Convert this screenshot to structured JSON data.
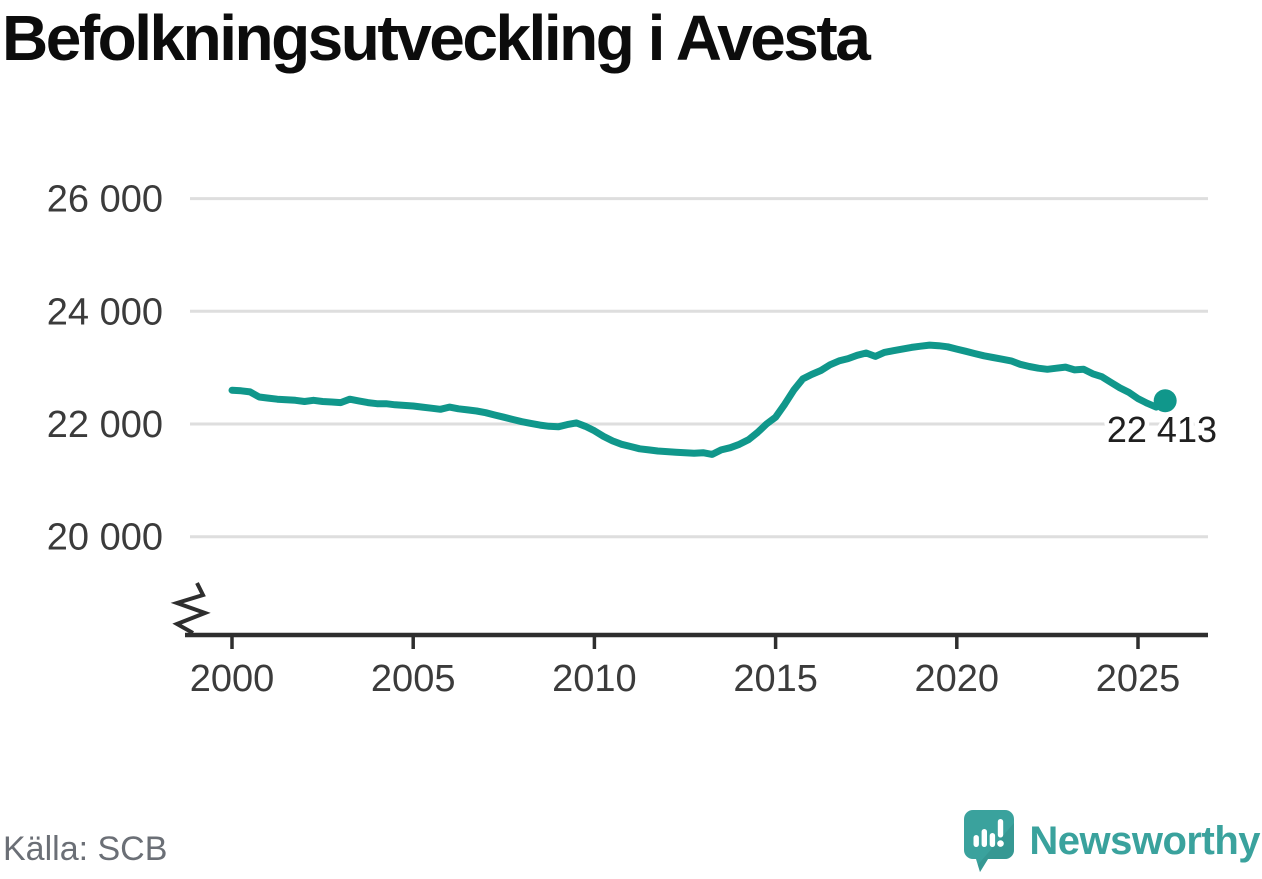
{
  "header": {
    "title": "Befolkningsutveckling i Avesta"
  },
  "chart_data": {
    "type": "line",
    "title": "Befolkningsutveckling i Avesta",
    "xlabel": "",
    "ylabel": "",
    "xlim": [
      2000,
      2025.75
    ],
    "ylim": [
      19600,
      26400
    ],
    "grid": true,
    "legend": "none",
    "y_axis_break": true,
    "y_ticks": [
      {
        "label": "26 000",
        "value": 26000
      },
      {
        "label": "24 000",
        "value": 24000
      },
      {
        "label": "22 000",
        "value": 22000
      },
      {
        "label": "20 000",
        "value": 20000
      }
    ],
    "x_ticks": [
      {
        "label": "2000",
        "year": 2000
      },
      {
        "label": "2005",
        "year": 2005
      },
      {
        "label": "2010",
        "year": 2010
      },
      {
        "label": "2015",
        "year": 2015
      },
      {
        "label": "2020",
        "year": 2020
      },
      {
        "label": "2025",
        "year": 2025
      }
    ],
    "latest": {
      "label": "22 413",
      "year": 2025.75,
      "value": 22413
    },
    "points": [
      [
        2000.0,
        22600
      ],
      [
        2000.25,
        22590
      ],
      [
        2000.5,
        22570
      ],
      [
        2000.75,
        22480
      ],
      [
        2001.0,
        22460
      ],
      [
        2001.25,
        22440
      ],
      [
        2001.5,
        22430
      ],
      [
        2001.75,
        22420
      ],
      [
        2002.0,
        22400
      ],
      [
        2002.25,
        22420
      ],
      [
        2002.5,
        22400
      ],
      [
        2002.75,
        22390
      ],
      [
        2003.0,
        22380
      ],
      [
        2003.25,
        22440
      ],
      [
        2003.5,
        22410
      ],
      [
        2003.75,
        22380
      ],
      [
        2004.0,
        22360
      ],
      [
        2004.25,
        22360
      ],
      [
        2004.5,
        22340
      ],
      [
        2004.75,
        22330
      ],
      [
        2005.0,
        22320
      ],
      [
        2005.25,
        22300
      ],
      [
        2005.5,
        22280
      ],
      [
        2005.75,
        22260
      ],
      [
        2006.0,
        22300
      ],
      [
        2006.25,
        22270
      ],
      [
        2006.5,
        22250
      ],
      [
        2006.75,
        22230
      ],
      [
        2007.0,
        22200
      ],
      [
        2007.25,
        22160
      ],
      [
        2007.5,
        22120
      ],
      [
        2007.75,
        22080
      ],
      [
        2008.0,
        22040
      ],
      [
        2008.25,
        22010
      ],
      [
        2008.5,
        21980
      ],
      [
        2008.75,
        21960
      ],
      [
        2009.0,
        21950
      ],
      [
        2009.25,
        21990
      ],
      [
        2009.5,
        22020
      ],
      [
        2009.75,
        21960
      ],
      [
        2010.0,
        21880
      ],
      [
        2010.25,
        21780
      ],
      [
        2010.5,
        21700
      ],
      [
        2010.75,
        21640
      ],
      [
        2011.0,
        21600
      ],
      [
        2011.25,
        21560
      ],
      [
        2011.5,
        21540
      ],
      [
        2011.75,
        21520
      ],
      [
        2012.0,
        21510
      ],
      [
        2012.25,
        21500
      ],
      [
        2012.5,
        21490
      ],
      [
        2012.75,
        21480
      ],
      [
        2013.0,
        21490
      ],
      [
        2013.25,
        21460
      ],
      [
        2013.5,
        21540
      ],
      [
        2013.75,
        21580
      ],
      [
        2014.0,
        21640
      ],
      [
        2014.25,
        21720
      ],
      [
        2014.5,
        21850
      ],
      [
        2014.75,
        22000
      ],
      [
        2015.0,
        22120
      ],
      [
        2015.25,
        22350
      ],
      [
        2015.5,
        22600
      ],
      [
        2015.75,
        22800
      ],
      [
        2016.0,
        22880
      ],
      [
        2016.25,
        22950
      ],
      [
        2016.5,
        23050
      ],
      [
        2016.75,
        23120
      ],
      [
        2017.0,
        23160
      ],
      [
        2017.25,
        23220
      ],
      [
        2017.5,
        23260
      ],
      [
        2017.75,
        23200
      ],
      [
        2018.0,
        23270
      ],
      [
        2018.25,
        23300
      ],
      [
        2018.5,
        23330
      ],
      [
        2018.75,
        23360
      ],
      [
        2019.0,
        23380
      ],
      [
        2019.25,
        23400
      ],
      [
        2019.5,
        23390
      ],
      [
        2019.75,
        23370
      ],
      [
        2020.0,
        23330
      ],
      [
        2020.25,
        23290
      ],
      [
        2020.5,
        23250
      ],
      [
        2020.75,
        23210
      ],
      [
        2021.0,
        23180
      ],
      [
        2021.25,
        23150
      ],
      [
        2021.5,
        23120
      ],
      [
        2021.75,
        23060
      ],
      [
        2022.0,
        23020
      ],
      [
        2022.25,
        22990
      ],
      [
        2022.5,
        22970
      ],
      [
        2022.75,
        22990
      ],
      [
        2023.0,
        23010
      ],
      [
        2023.25,
        22960
      ],
      [
        2023.5,
        22970
      ],
      [
        2023.75,
        22890
      ],
      [
        2024.0,
        22840
      ],
      [
        2024.25,
        22740
      ],
      [
        2024.5,
        22640
      ],
      [
        2024.75,
        22560
      ],
      [
        2025.0,
        22450
      ],
      [
        2025.25,
        22370
      ],
      [
        2025.5,
        22300
      ],
      [
        2025.75,
        22413
      ]
    ],
    "colors": {
      "line": "#10978b",
      "grid": "#dedede",
      "axis": "#2e2e2e",
      "tick_label": "#3b3b3b",
      "title": "#0c0c0c",
      "source": "#6b6f76",
      "brand": "#3aa29d",
      "annotation": "#202020"
    }
  },
  "footer": {
    "source": "Källa: SCB",
    "brand": "Newsworthy"
  }
}
